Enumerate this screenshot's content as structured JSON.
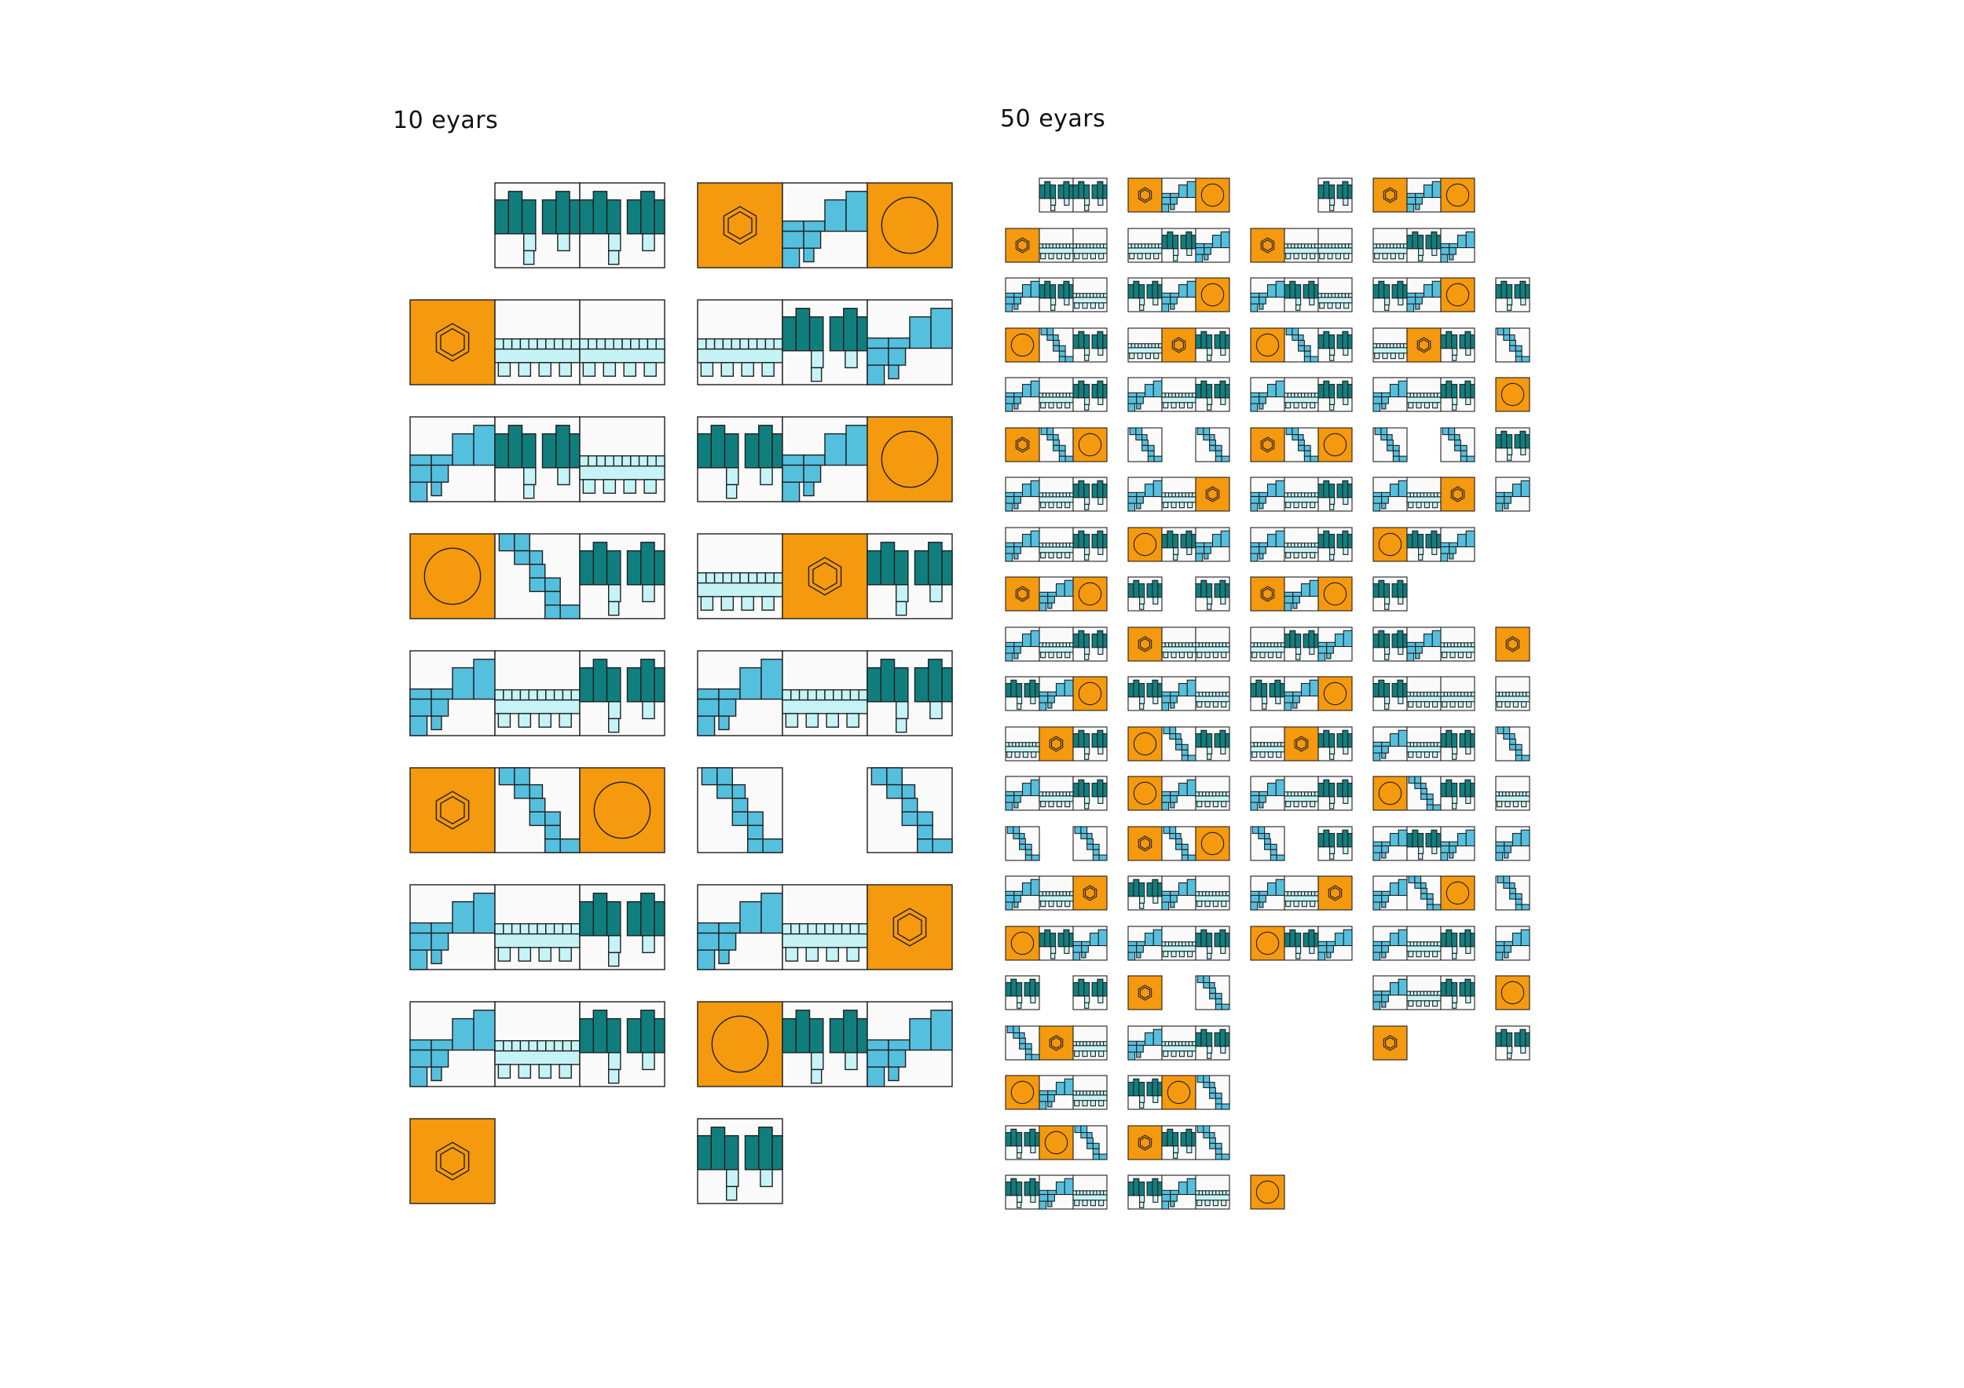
{
  "panels": {
    "ten_years": {
      "title": "10 eyars"
    },
    "fifty_years": {
      "title": "50 eyars"
    }
  },
  "colors": {
    "orange": "#f5990e",
    "teal": "#117e7e",
    "blue": "#55c0de",
    "pale": "#c6f4f6",
    "cell_bg": "#fafafa",
    "stroke": "#1f1f1f"
  },
  "module_legend": [
    {
      "type": "O",
      "description": "orange module with circle"
    },
    {
      "type": "H",
      "description": "orange module with hexagon"
    },
    {
      "type": "T",
      "description": "teal module"
    },
    {
      "type": "B",
      "description": "blue module"
    },
    {
      "type": "P",
      "description": "pale blue module"
    },
    {
      "type": "Z",
      "description": "blue stepped module"
    },
    {
      "type": "_",
      "description": "empty slot"
    }
  ],
  "ten_year_rows": [
    [
      "_TT",
      "HBO"
    ],
    [
      "HPP",
      "PTB"
    ],
    [
      "BTP",
      "TBO"
    ],
    [
      "OZT",
      "PHT"
    ],
    [
      "BPT",
      "BPT"
    ],
    [
      "HZO",
      "Z_Z"
    ],
    [
      "BPT",
      "BPH"
    ],
    [
      "BPT",
      "OTB"
    ],
    [
      "H__",
      "T__"
    ]
  ],
  "fifty_year_rows": [
    [
      "_TT",
      "HBO",
      "__T",
      "HBO",
      "___"
    ],
    [
      "HPP",
      "PTB",
      "HPP",
      "PTB",
      "___"
    ],
    [
      "BTP",
      "TBO",
      "BTP",
      "TBO",
      "T__"
    ],
    [
      "OZT",
      "PHT",
      "OZT",
      "PHT",
      "Z__"
    ],
    [
      "BPT",
      "BPT",
      "BPT",
      "BPT",
      "O__"
    ],
    [
      "HZO",
      "Z_Z",
      "HZO",
      "Z_Z",
      "T__"
    ],
    [
      "BPT",
      "BPH",
      "BPT",
      "BPH",
      "B__"
    ],
    [
      "BPT",
      "OTB",
      "BPT",
      "OTB",
      "___"
    ],
    [
      "HBO",
      "T_T",
      "HBO",
      "T__",
      "___"
    ],
    [
      "BPT",
      "HPP",
      "PTB",
      "TBP",
      "H__"
    ],
    [
      "TBO",
      "TBP",
      "TBO",
      "TPP",
      "P__"
    ],
    [
      "PHT",
      "OZT",
      "PHT",
      "BPT",
      "Z__"
    ],
    [
      "BPT",
      "OBP",
      "BPT",
      "OZT",
      "P__"
    ],
    [
      "Z_Z",
      "HZO",
      "Z_T",
      "BTB",
      "B__"
    ],
    [
      "BPH",
      "TBP",
      "BPH",
      "BZO",
      "Z__"
    ],
    [
      "OTB",
      "BPT",
      "OTB",
      "BPT",
      "B__"
    ],
    [
      "T_T",
      "H_Z",
      "___",
      "BPT",
      "O__"
    ],
    [
      "ZHP",
      "BPT",
      "___",
      "H__",
      "T__"
    ],
    [
      "OBP",
      "TOZ",
      "___",
      "___",
      "___"
    ],
    [
      "TOZ",
      "HTZ",
      "___",
      "___",
      "___"
    ],
    [
      "TBP",
      "TBP",
      "O__",
      "___",
      "___"
    ]
  ]
}
